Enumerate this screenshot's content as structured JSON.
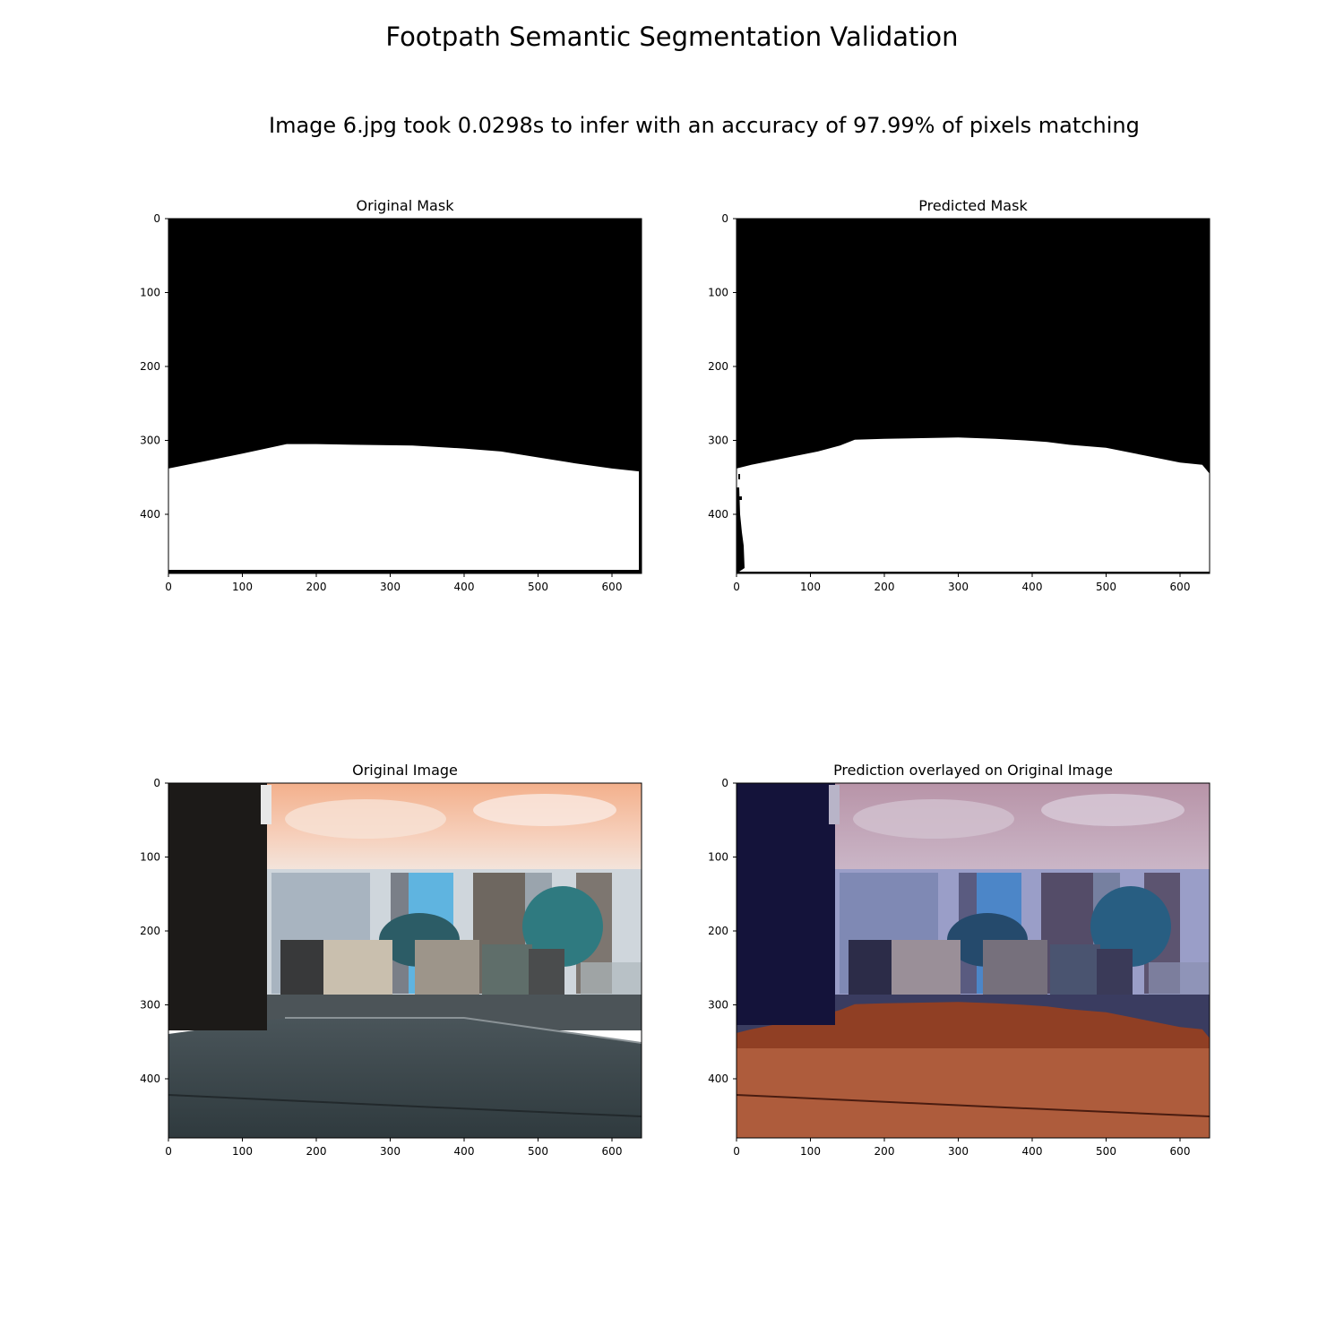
{
  "figure": {
    "suptitle": "Footpath Semantic Segmentation Validation",
    "subtitle": "Image 6.jpg took 0.0298s to infer with an accuracy of 97.99% of pixels matching"
  },
  "chart_data": [
    {
      "type": "image",
      "title": "Original Mask",
      "xlim": [
        0,
        640
      ],
      "ylim": [
        480,
        0
      ],
      "xticks": [
        0,
        100,
        200,
        300,
        400,
        500,
        600
      ],
      "yticks": [
        0,
        100,
        200,
        300,
        400
      ],
      "content": "binary mask",
      "boundary": [
        [
          0,
          338
        ],
        [
          50,
          328
        ],
        [
          100,
          318
        ],
        [
          160,
          305
        ],
        [
          200,
          305
        ],
        [
          250,
          306
        ],
        [
          330,
          307
        ],
        [
          400,
          311
        ],
        [
          450,
          315
        ],
        [
          500,
          323
        ],
        [
          550,
          331
        ],
        [
          600,
          338
        ],
        [
          638,
          342
        ]
      ],
      "colors": {
        "background": "#000000",
        "footpath": "#ffffff"
      }
    },
    {
      "type": "image",
      "title": "Predicted Mask",
      "xlim": [
        0,
        640
      ],
      "ylim": [
        480,
        0
      ],
      "xticks": [
        0,
        100,
        200,
        300,
        400,
        500,
        600
      ],
      "yticks": [
        0,
        100,
        200,
        300,
        400
      ],
      "content": "binary mask",
      "boundary": [
        [
          0,
          338
        ],
        [
          20,
          333
        ],
        [
          60,
          325
        ],
        [
          110,
          315
        ],
        [
          140,
          307
        ],
        [
          160,
          299
        ],
        [
          200,
          298
        ],
        [
          250,
          297
        ],
        [
          300,
          296
        ],
        [
          350,
          298
        ],
        [
          390,
          300
        ],
        [
          420,
          302
        ],
        [
          450,
          306
        ],
        [
          500,
          310
        ],
        [
          550,
          320
        ],
        [
          600,
          330
        ],
        [
          630,
          333
        ],
        [
          640,
          345
        ]
      ],
      "colors": {
        "background": "#000000",
        "footpath": "#ffffff"
      }
    },
    {
      "type": "image",
      "title": "Original Image",
      "xlim": [
        0,
        640
      ],
      "ylim": [
        480,
        0
      ],
      "xticks": [
        0,
        100,
        200,
        300,
        400,
        500,
        600
      ],
      "yticks": [
        0,
        100,
        200,
        300,
        400
      ],
      "content": "photo"
    },
    {
      "type": "image",
      "title": "Prediction overlayed on Original Image",
      "xlim": [
        0,
        640
      ],
      "ylim": [
        480,
        0
      ],
      "xticks": [
        0,
        100,
        200,
        300,
        400,
        500,
        600
      ],
      "yticks": [
        0,
        100,
        200,
        300,
        400
      ],
      "content": "photo with mask overlay",
      "overlay_colors": {
        "background": "#1a1660",
        "footpath": "#a0401a"
      }
    }
  ]
}
